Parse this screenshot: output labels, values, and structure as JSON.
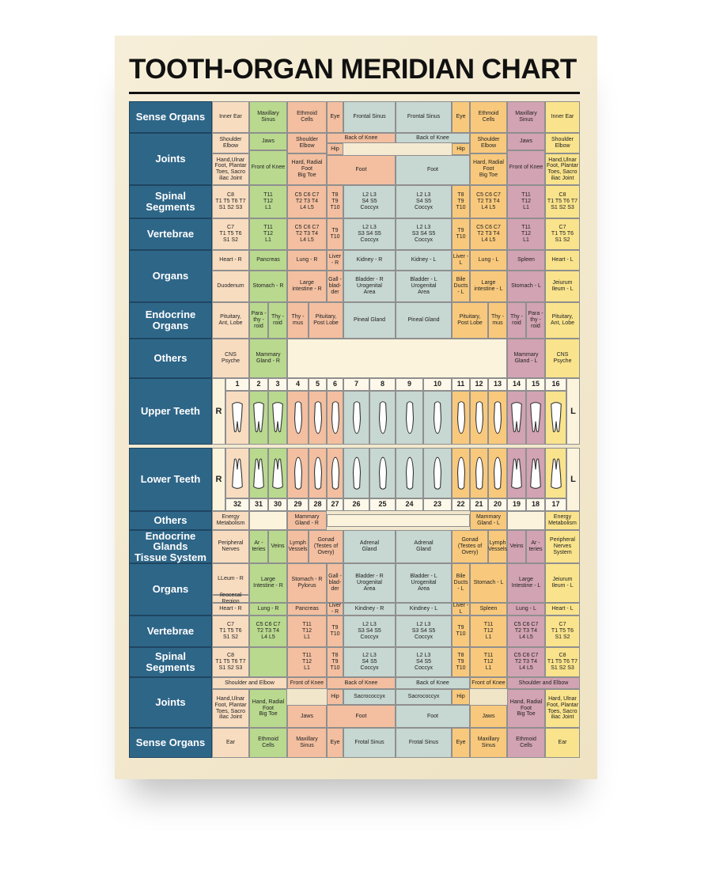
{
  "header": {
    "title": "TOOTH-ORGAN MERIDIAN CHART"
  },
  "upper_rows": [
    {
      "label": "Sense Organs",
      "cells": [
        "Inner Ear",
        "Maxillary\nSinus",
        "Ethmoid\nCells",
        "Eye",
        "Frontal Sinus",
        "Frontal Sinus",
        "Eye",
        "Ethmoid\nCells",
        "Maxillary\nSinus",
        "Inner Ear"
      ]
    },
    {
      "label": "Joints",
      "cells": [
        "Shoulder\nElbow",
        "Hand,Ulnar\nFoot, Plantar\nToes, Sacro\niliac Joint",
        "Jaws",
        "Front of Knee",
        "Shoulder\nElbow",
        "Hard, Radial\nFoot\nBig Toe",
        "Back of Knee",
        "Hip",
        "Foot",
        "Back of Knee",
        "Hip",
        "Foot",
        "Shoulder\nElbow",
        "Hard, Radial\nFoot\nBig Toe",
        "Jaws",
        "Front of Knee",
        "Shoulder\nElbow",
        "Hand,Ulnar\nFoot, Plantar\nToes, Sacro\niliac Joint"
      ]
    },
    {
      "label": "Spinal Segments",
      "cells": [
        "C8\nT1 T5 T6 T7\nS1 S2 S3",
        "T11\nT12\nL1",
        "C5 C6 C7\nT2 T3 T4\nL4 L5",
        "T8\nT9\nT10",
        "L2 L3\nS4 S5\nCoccyx",
        "L2 L3\nS4 S5\nCoccyx",
        "T8\nT9\nT10",
        "C5 C6 C7\nT2 T3 T4\nL4 L5",
        "T11\nT12\nL1",
        "C8\nT1 T5 T6 T7\nS1 S2 S3"
      ]
    },
    {
      "label": "Vertebrae",
      "cells": [
        "C7\nT1 T5 T6\nS1 S2",
        "T11\nT12\nL1",
        "C5 C6 C7\nT2 T3 T4\nL4 L5",
        "T9\nT10",
        "L2 L3\nS3 S4 S5\nCoccyx",
        "L2 L3\nS3 S4 S5\nCoccyx",
        "T9\nT10",
        "C5 C6 C7\nT2 T3 T4\nL4 L5",
        "T11\nT12\nL1",
        "C7\nT1 T5 T6\nS1 S2"
      ]
    },
    {
      "label": "Organs",
      "cells": [
        "Heart - R",
        "Pancreas",
        "Lung - R",
        "Liver - R",
        "Kidney - R",
        "Kidney - L",
        "Liver - L",
        "Lung - L",
        "Spleen",
        "Heart - L",
        "Duodenum",
        "Stomach - R",
        "Large\nintestine - R",
        "Gall -\nblad-\nder",
        "Bladder - R\nUrogenital\nArea",
        "Bladder - L\nUrogenital\nArea",
        "Bile\nDucts\n- L",
        "Large\nintestine - L",
        "Stomach - L",
        "Jeiurum\nIleum - L"
      ]
    },
    {
      "label": "Endocrine Organs",
      "cells": [
        "Pituitary,\nAnt, Lobe",
        "Para -\nthy -\nroid",
        "Thy -\nroid",
        "Thy -\nmus",
        "Pituitary,\nPost Lobe",
        "Pineal Gland",
        "Pineal Gland",
        "Pituitary,\nPost Lobe",
        "Thy -\nmus",
        "Thy -\nroid",
        "Para -\nthy -\nroid",
        "Pituitary,\nAnt, Lobe"
      ]
    },
    {
      "label": "Others",
      "cells": [
        "CNS\nPsyche",
        "Mammary\nGland - R",
        "Mammary\nGland - L",
        "CNS\nPsyche"
      ]
    }
  ],
  "upper_teeth": {
    "label": "Upper Teeth",
    "left": "R",
    "right": "L",
    "numbers": [
      1,
      2,
      3,
      4,
      5,
      6,
      7,
      8,
      9,
      10,
      11,
      12,
      13,
      14,
      15,
      16
    ]
  },
  "lower_teeth": {
    "label": "Lower Teeth",
    "left": "R",
    "right": "L",
    "numbers": [
      32,
      31,
      30,
      29,
      28,
      27,
      26,
      25,
      24,
      23,
      22,
      21,
      20,
      19,
      18,
      17
    ]
  },
  "lower_rows": [
    {
      "label": "Others",
      "cells": [
        "Energy\nMetabolism",
        "Mammary\nGland - R",
        "Mammary\nGland - L",
        "Energy\nMetabolism"
      ]
    },
    {
      "label": "Endocrine Glands\nTissue System",
      "cells": [
        "Peripheral\nNerves",
        "Ar -\nteries",
        "Veins",
        "Lymph\nVessels",
        "Gonad\n(Testes of\nOvery)",
        "Adrenal\nGland",
        "Adrenal\nGland",
        "Gonad\n(Testes of\nOvery)",
        "Lymph\nVessels",
        "Veins",
        "Ar -\nteries",
        "Peripheral\nNerves\nSystem"
      ]
    },
    {
      "label": "Organs",
      "cells": [
        "LLeum - R",
        "Ileocecal Region",
        "Large\nIntestine - R",
        "Stomach - R\nPylorus",
        "Gall -\nblad-\nder",
        "Bladder - R\nUrogenital\nArea",
        "Bladder - L\nUrogenital\nArea",
        "Bile\nDucts\n- L",
        "Stomach - L",
        "Large\nIntestine - L",
        "Jeiurum\nIleum - L",
        "Heart - R",
        "Lung - R",
        "Pancreas",
        "Liver - R",
        "Kindney - R",
        "Kindney - L",
        "Liver - L",
        "Spleen",
        "Lung - L",
        "Heart - L"
      ]
    },
    {
      "label": "Vertebrae",
      "cells": [
        "C7\nT1 T5 T6\nS1 S2",
        "C5 C6 C7\nT2 T3 T4\nL4 L5",
        "T11\nT12\nL1",
        "T9\nT10",
        "L2 L3\nS3 S4 S5\nCoccyx",
        "L2 L3\nS3 S4 S5\nCoccyx",
        "T9\nT10",
        "T11\nT12\nL1",
        "C5 C6 C7\nT2 T3 T4\nL4 L5",
        "C7\nT1 T5 T6\nS1 S2"
      ]
    },
    {
      "label": "Spinal Segments",
      "cells": [
        "C8\nT1 T5 T6 T7\nS1 S2 S3",
        "T11\nT12\nL1",
        "T8\nT9\nT10",
        "L2 L3\nS4 S5\nCoccyx",
        "L2 L3\nS4 S5\nCoccyx",
        "T8\nT9\nT10",
        "T11\nT12\nL1",
        "C5 C6 C7\nT2 T3 T4\nL4 L5",
        "C8\nT1 T5 T6 T7\nS1 S2 S3"
      ]
    },
    {
      "label": "Joints",
      "cells": [
        "Shoulder and Elbow",
        "Front of Knee",
        "Back of Knee",
        "Back of Knee",
        "Front of Knee",
        "Shoulder and Elbow",
        "Hip",
        "Sacrococcyx",
        "Sacrococcyx",
        "Hip",
        "Hand,Ulnar\nFoot, Plantar\nToes, Sacro\niliac Joint",
        "Hand, Radial\nFoot\nBig Toe",
        "Jaws",
        "Foot",
        "Foot",
        "Jaws",
        "Hand, Radial\nFoot\nBig Toe",
        "Hard, Ulnar\nFoot, Plantar\nToes, Sacro\niliac Joint"
      ]
    },
    {
      "label": "Sense Organs",
      "cells": [
        "Ear",
        "Ethmoid\nCells",
        "Maxillary\nSinus",
        "Eye",
        "Frotal Sinus",
        "Frotal Sinus",
        "Eye",
        "Maxillary\nSinus",
        "Ethmoid\nCells",
        "Ear"
      ]
    }
  ]
}
